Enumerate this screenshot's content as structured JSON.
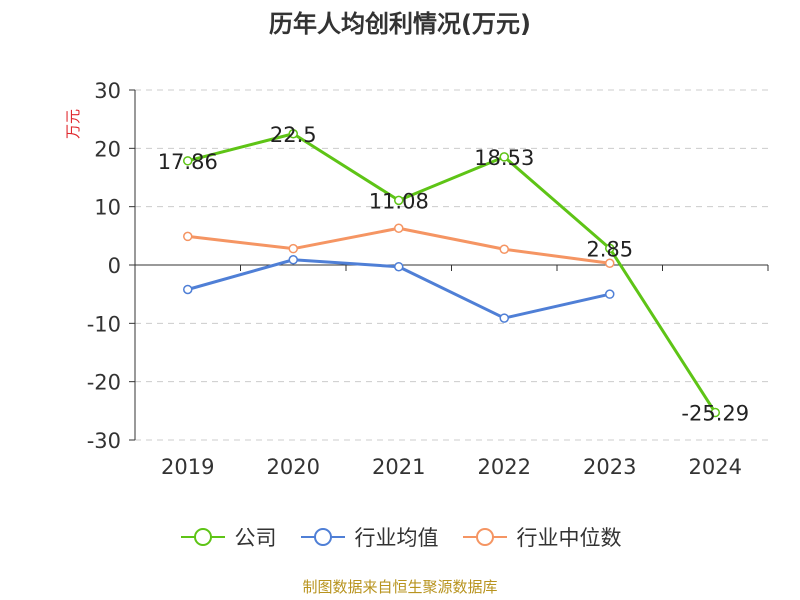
{
  "colors": {
    "company": "#5ec416",
    "industry_avg": "#4f7fd6",
    "industry_median": "#f59563",
    "unit_label": "#e0282e",
    "source": "#b8941f"
  },
  "chart_data": {
    "type": "line",
    "title": "历年人均创利情况(万元)",
    "ylabel": "万元",
    "xlabel": "",
    "categories": [
      "2019",
      "2020",
      "2021",
      "2022",
      "2023",
      "2024"
    ],
    "ylim": [
      -30,
      30
    ],
    "yticks": [
      30,
      20,
      10,
      0,
      -10,
      -20,
      -30
    ],
    "grid": true,
    "legend_position": "bottom",
    "series": [
      {
        "name": "公司",
        "values": [
          17.86,
          22.5,
          11.08,
          18.53,
          2.85,
          -25.29
        ],
        "labels": [
          "17.86",
          "22.5",
          "11.08",
          "18.53",
          "2.85",
          "-25.29"
        ]
      },
      {
        "name": "行业均值",
        "values": [
          -4.2,
          0.9,
          -0.3,
          -9.1,
          -5.0,
          null
        ]
      },
      {
        "name": "行业中位数",
        "values": [
          4.9,
          2.8,
          6.3,
          2.7,
          0.3,
          null
        ]
      }
    ]
  },
  "source": "制图数据来自恒生聚源数据库"
}
